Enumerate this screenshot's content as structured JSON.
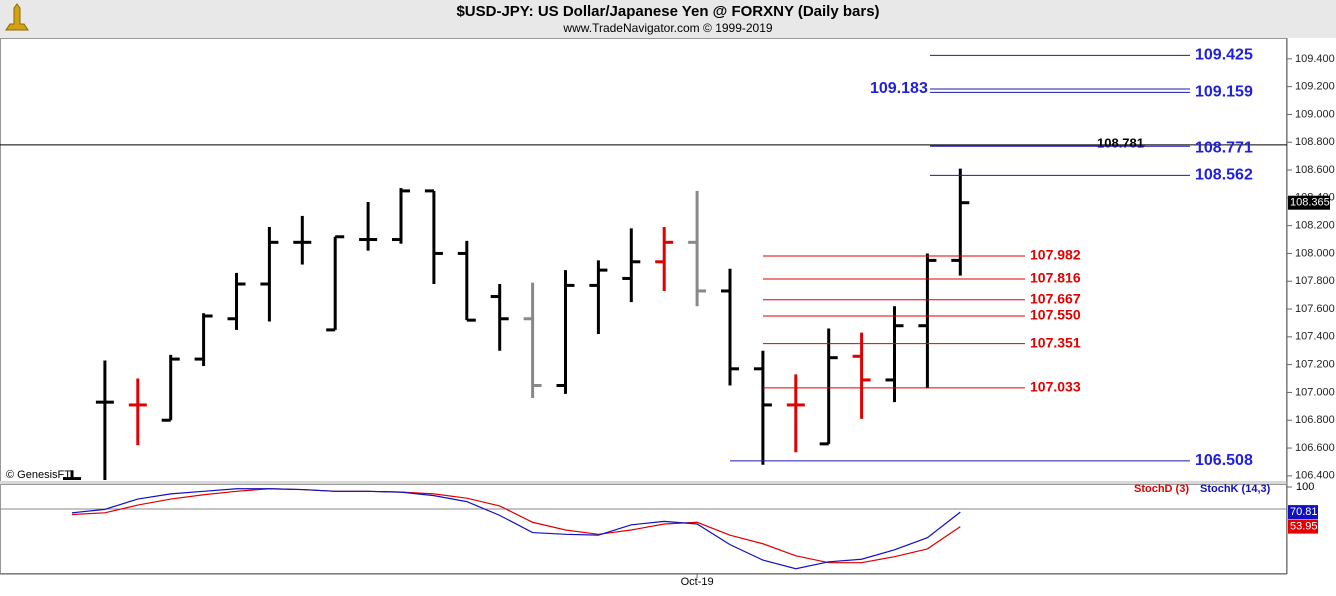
{
  "chart_data": {
    "type": "ohlc",
    "title": "$USD-JPY:  US Dollar/Japanese Yen @ FORXNY  (Daily bars)",
    "subtitle": "www.TradeNavigator.com © 1999-2019",
    "watermark": "© GenesisFT",
    "categories": [
      null,
      null,
      null,
      null,
      null,
      null,
      null,
      null,
      null,
      null,
      null,
      null,
      null,
      null,
      null,
      null,
      null,
      null,
      null,
      "Oct-19",
      null,
      null,
      null,
      null,
      null,
      null,
      null,
      null
    ],
    "open": [
      106.38,
      106.93,
      106.91,
      106.8,
      107.24,
      107.53,
      107.78,
      108.08,
      107.45,
      108.1,
      108.1,
      108.45,
      108.0,
      107.69,
      107.53,
      107.05,
      107.77,
      107.82,
      107.94,
      108.08,
      107.73,
      107.17,
      106.91,
      106.63,
      107.26,
      107.09,
      107.48,
      107.95
    ],
    "high": [
      106.44,
      107.23,
      107.1,
      107.27,
      107.57,
      107.86,
      108.19,
      108.27,
      108.12,
      108.37,
      108.47,
      108.45,
      108.09,
      107.78,
      107.79,
      107.88,
      107.95,
      108.18,
      108.19,
      108.45,
      107.89,
      107.3,
      107.13,
      107.46,
      107.43,
      107.62,
      108.0,
      108.61
    ],
    "low": [
      106.36,
      106.36,
      106.62,
      106.8,
      107.19,
      107.45,
      107.51,
      107.92,
      107.45,
      108.02,
      108.07,
      107.78,
      107.52,
      107.3,
      106.96,
      106.99,
      107.42,
      107.65,
      107.73,
      107.62,
      107.05,
      106.48,
      106.57,
      106.63,
      106.81,
      106.93,
      107.03,
      107.84
    ],
    "close": [
      106.38,
      106.93,
      106.91,
      107.24,
      107.55,
      107.78,
      108.08,
      108.08,
      108.12,
      108.1,
      108.45,
      108.0,
      107.52,
      107.53,
      107.05,
      107.77,
      107.88,
      107.94,
      108.08,
      107.73,
      107.17,
      106.91,
      106.91,
      107.25,
      107.09,
      107.48,
      107.95,
      108.365
    ],
    "colors": [
      "#000000",
      "#000000",
      "#e00000",
      "#000000",
      "#000000",
      "#000000",
      "#000000",
      "#000000",
      "#000000",
      "#000000",
      "#000000",
      "#000000",
      "#000000",
      "#000000",
      "#888888",
      "#000000",
      "#000000",
      "#000000",
      "#e00000",
      "#888888",
      "#000000",
      "#000000",
      "#e00000",
      "#000000",
      "#e00000",
      "#000000",
      "#000000",
      "#000000"
    ],
    "ylim": [
      106.37,
      109.55
    ],
    "yticks": [
      {
        "value": 106.4,
        "label": "106.400"
      },
      {
        "value": 106.6,
        "label": "106.600"
      },
      {
        "value": 106.8,
        "label": "106.800"
      },
      {
        "value": 107.0,
        "label": "107.000"
      },
      {
        "value": 107.2,
        "label": "107.200"
      },
      {
        "value": 107.4,
        "label": "107.400"
      },
      {
        "value": 107.6,
        "label": "107.600"
      },
      {
        "value": 107.8,
        "label": "107.800"
      },
      {
        "value": 108.0,
        "label": "108.000"
      },
      {
        "value": 108.2,
        "label": "108.200"
      },
      {
        "value": 108.4,
        "label": "108.400"
      },
      {
        "value": 108.6,
        "label": "108.600"
      },
      {
        "value": 108.8,
        "label": "108.800"
      },
      {
        "value": 109.0,
        "label": "109.000"
      },
      {
        "value": 109.2,
        "label": "109.200"
      },
      {
        "value": 109.4,
        "label": "109.400"
      }
    ],
    "last_price": 108.365,
    "levels": [
      {
        "value": 109.425,
        "color": "#1a1ab0"
      },
      {
        "value": 109.183,
        "color": "#1a1ab0"
      },
      {
        "value": 109.159,
        "color": "#1a1ab0"
      },
      {
        "value": 108.781,
        "color": "#000000"
      },
      {
        "value": 108.771,
        "color": "#1a1ab0"
      },
      {
        "value": 108.562,
        "color": "#1a1ab0"
      },
      {
        "value": 107.982,
        "color": "#e00000"
      },
      {
        "value": 107.816,
        "color": "#e00000"
      },
      {
        "value": 107.667,
        "color": "#e00000"
      },
      {
        "value": 107.55,
        "label": "107.550",
        "color": "#e00000"
      },
      {
        "value": 107.351,
        "color": "#e00000"
      },
      {
        "value": 107.033,
        "color": "#e00000"
      },
      {
        "value": 106.508,
        "color": "#1a1ab0"
      }
    ],
    "stochastic": {
      "ylim": [
        0,
        100
      ],
      "yticks": [
        100
      ],
      "series": [
        {
          "name": "StochD (3)",
          "color": "#e00000",
          "values": [
            68,
            70,
            79,
            86,
            91,
            95,
            98,
            97,
            95,
            95,
            94,
            92,
            87,
            78,
            59,
            50,
            45,
            50,
            57,
            59,
            44,
            34,
            20,
            12,
            12,
            19,
            28,
            53.95
          ]
        },
        {
          "name": "StochK (14,3)",
          "color": "#1010c0",
          "values": [
            70,
            74,
            86,
            92,
            95,
            98,
            98,
            97,
            95,
            95,
            94,
            90,
            83,
            67,
            47,
            45,
            44,
            56,
            60,
            57,
            33,
            15,
            5,
            13,
            16,
            27,
            41,
            70.81
          ]
        }
      ]
    }
  }
}
